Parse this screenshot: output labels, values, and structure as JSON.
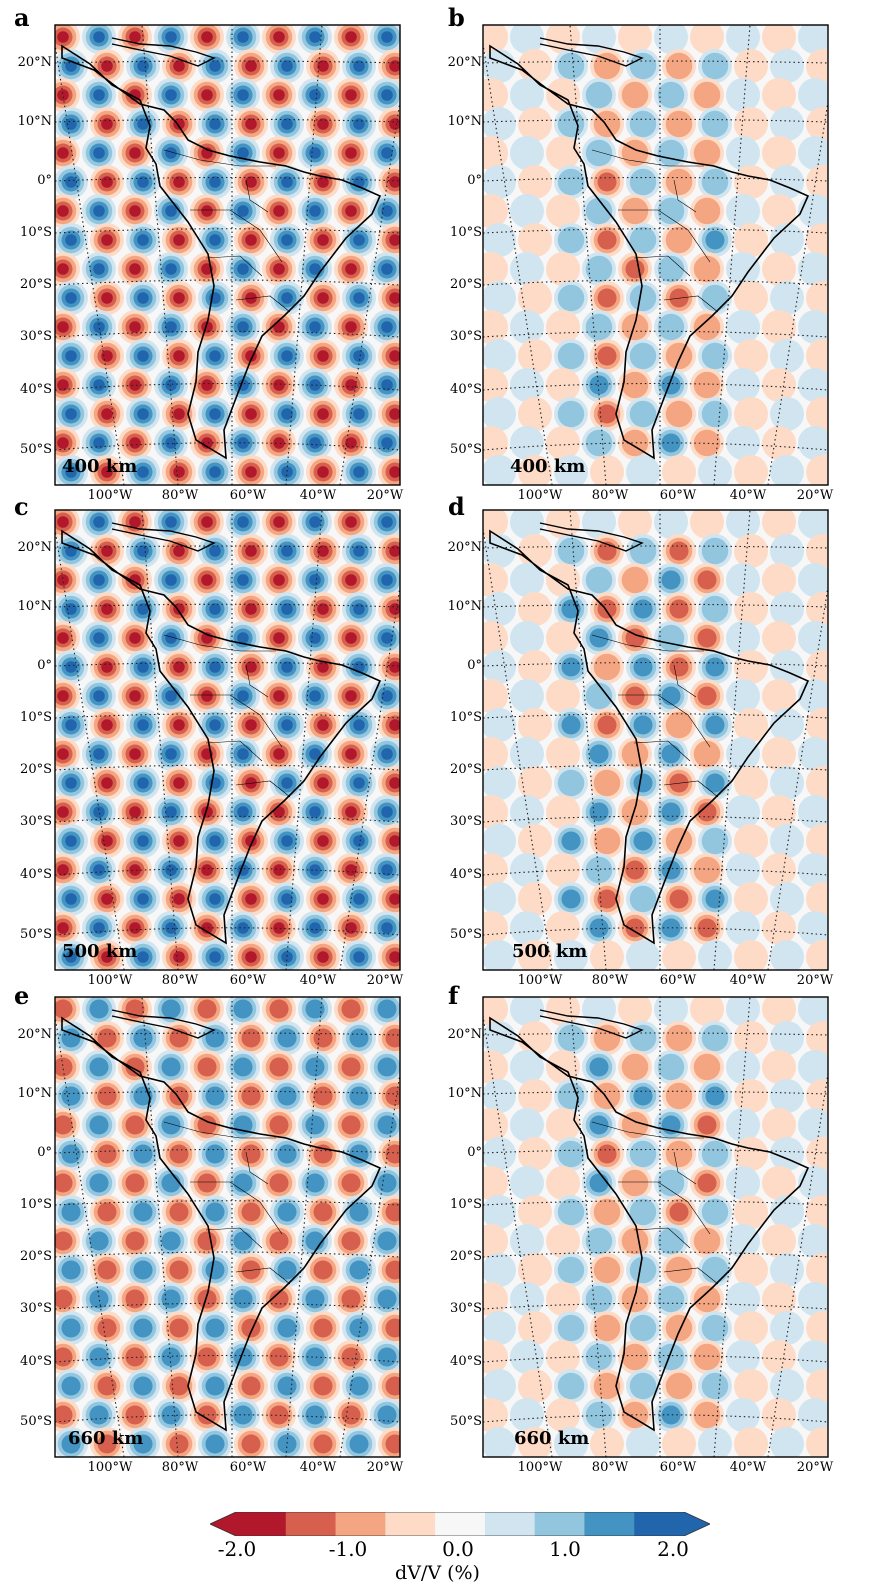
{
  "panels": [
    {
      "id": "a",
      "depth": "400 km",
      "kind": "checker",
      "amp": 1.0
    },
    {
      "id": "b",
      "depth": "400 km",
      "kind": "recovered",
      "amp": 0.55
    },
    {
      "id": "c",
      "depth": "500 km",
      "kind": "checker",
      "amp": 1.0
    },
    {
      "id": "d",
      "depth": "500 km",
      "kind": "recovered",
      "amp": 0.7
    },
    {
      "id": "e",
      "depth": "660 km",
      "kind": "checker",
      "amp": 0.75
    },
    {
      "id": "f",
      "depth": "660 km",
      "kind": "recovered",
      "amp": 0.55
    }
  ],
  "lat_labels": [
    "20°N",
    "10°N",
    "0°",
    "10°S",
    "20°S",
    "30°S",
    "40°S",
    "50°S"
  ],
  "lon_labels": [
    "100°W",
    "80°W",
    "60°W",
    "40°W",
    "20°W"
  ],
  "colorbar": {
    "title": "dV/V (%)",
    "ticks": [
      "-2.0",
      "-1.0",
      "0.0",
      "1.0",
      "2.0"
    ],
    "range": [
      -2.0,
      2.0
    ],
    "colors": [
      "#b2182b",
      "#d6604d",
      "#f4a582",
      "#fddbc7",
      "#f7f7f7",
      "#d1e5f0",
      "#92c5de",
      "#4393c3",
      "#2166ac"
    ]
  }
}
